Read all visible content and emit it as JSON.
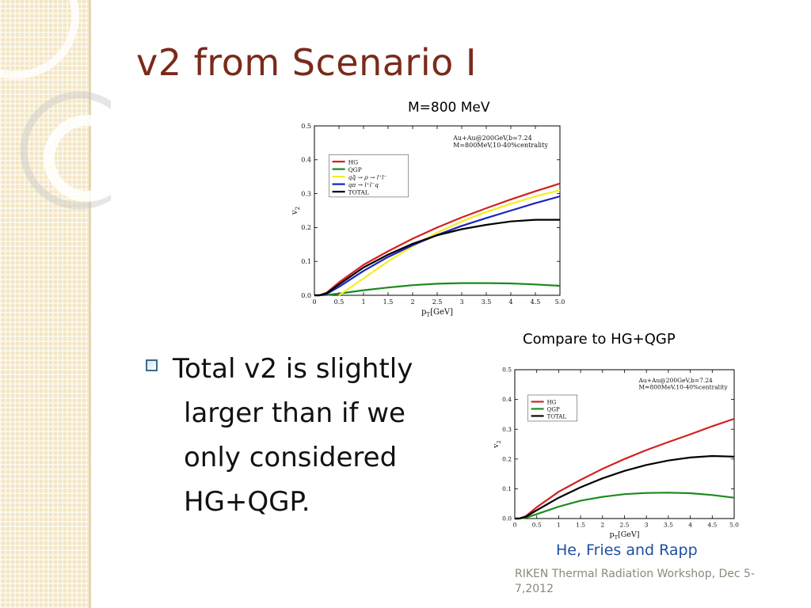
{
  "slide": {
    "title": "v2 from Scenario I",
    "caption_top": "M=800 MeV",
    "caption_bottom": "Compare to HG+QGP",
    "bullet_lines": [
      "Total v2 is slightly",
      "larger than if we",
      "only considered",
      "HG+QGP."
    ],
    "credit": "He, Fries and Rapp",
    "footer": "RIKEN Thermal Radiation Workshop, Dec 5-7,2012"
  },
  "colors": {
    "title": "#7a2a1a",
    "credit": "#1f4fa0",
    "HG": "#d42020",
    "QGP": "#1c8a1c",
    "qq": "#f2ef20",
    "qpi": "#1d22c0",
    "TOTAL": "#000000"
  },
  "chart_data": [
    {
      "type": "line",
      "xlabel": "p_T[GeV]",
      "ylabel": "v_2",
      "xlim": [
        0,
        5.0
      ],
      "ylim": [
        0,
        0.5
      ],
      "xticks": [
        0,
        0.5,
        1,
        1.5,
        2,
        2.5,
        3,
        3.5,
        4,
        4.5,
        5.0
      ],
      "xtick_labels": [
        "0",
        "0.5",
        "1",
        "1.5",
        "2",
        "2.5",
        "3",
        "3.5",
        "4",
        "4.5",
        "5.0"
      ],
      "yticks": [
        0,
        0.1,
        0.2,
        0.3,
        0.4,
        0.5
      ],
      "ytick_labels": [
        "0.0",
        "0.1",
        "0.2",
        "0.3",
        "0.4",
        "0.5"
      ],
      "annotation": [
        "Au+Au@200GeV,b=7.24",
        "M=800MeV,10-40%centrality"
      ],
      "legend_position": "top-left",
      "series": [
        {
          "name": "HG",
          "key": "HG",
          "x": [
            0,
            0.1,
            0.25,
            0.5,
            1,
            1.5,
            2,
            2.5,
            3,
            3.5,
            4,
            4.5,
            5
          ],
          "values": [
            0,
            0,
            0.008,
            0.038,
            0.09,
            0.13,
            0.167,
            0.2,
            0.23,
            0.257,
            0.283,
            0.307,
            0.33
          ]
        },
        {
          "name": "QGP",
          "key": "QGP",
          "x": [
            0,
            0.1,
            0.25,
            0.5,
            1,
            1.5,
            2,
            2.5,
            3,
            3.5,
            4,
            4.5,
            5
          ],
          "values": [
            0,
            0,
            0.001,
            0.005,
            0.015,
            0.023,
            0.03,
            0.034,
            0.036,
            0.036,
            0.035,
            0.032,
            0.028
          ]
        },
        {
          "name": "qq̄ → ρ → l⁺l⁻",
          "key": "qq",
          "x": [
            0.5,
            1,
            1.5,
            2,
            2.5,
            3,
            3.5,
            4,
            4.5,
            5
          ],
          "values": [
            0,
            0.05,
            0.1,
            0.145,
            0.185,
            0.218,
            0.246,
            0.27,
            0.292,
            0.31
          ]
        },
        {
          "name": "qπ → l⁺l⁻q",
          "key": "qpi",
          "x": [
            0,
            0.1,
            0.25,
            0.5,
            1,
            1.5,
            2,
            2.5,
            3,
            3.5,
            4,
            4.5,
            5
          ],
          "values": [
            0,
            0,
            0.004,
            0.025,
            0.072,
            0.113,
            0.148,
            0.178,
            0.205,
            0.228,
            0.25,
            0.272,
            0.292
          ]
        },
        {
          "name": "TOTAL",
          "key": "TOTAL",
          "x": [
            0,
            0.1,
            0.25,
            0.5,
            1,
            1.5,
            2,
            2.5,
            3,
            3.5,
            4,
            4.5,
            5
          ],
          "values": [
            0,
            0,
            0.006,
            0.032,
            0.082,
            0.12,
            0.152,
            0.177,
            0.195,
            0.208,
            0.218,
            0.223,
            0.223
          ]
        }
      ]
    },
    {
      "type": "line",
      "xlabel": "p_T[GeV]",
      "ylabel": "v_2",
      "xlim": [
        0,
        5.0
      ],
      "ylim": [
        0,
        0.5
      ],
      "xticks": [
        0,
        0.5,
        1,
        1.5,
        2,
        2.5,
        3,
        3.5,
        4,
        4.5,
        5.0
      ],
      "xtick_labels": [
        "0",
        "0.5",
        "1",
        "1.5",
        "2",
        "2.5",
        "3",
        "3.5",
        "4",
        "4.5",
        "5.0"
      ],
      "yticks": [
        0,
        0.1,
        0.2,
        0.3,
        0.4,
        0.5
      ],
      "ytick_labels": [
        "0.0",
        "0.1",
        "0.2",
        "0.3",
        "0.4",
        "0.5"
      ],
      "annotation": [
        "Au+Au@200GeV,b=7.24",
        "M=800MeV,10-40%centrality"
      ],
      "legend_position": "top-left",
      "series": [
        {
          "name": "HG",
          "key": "HG",
          "x": [
            0,
            0.1,
            0.25,
            0.5,
            1,
            1.5,
            2,
            2.5,
            3,
            3.5,
            4,
            4.5,
            5
          ],
          "values": [
            0,
            0,
            0.008,
            0.038,
            0.09,
            0.13,
            0.167,
            0.2,
            0.23,
            0.257,
            0.283,
            0.31,
            0.335
          ]
        },
        {
          "name": "QGP",
          "key": "QGP",
          "x": [
            0,
            0.1,
            0.25,
            0.5,
            1,
            1.5,
            2,
            2.5,
            3,
            3.5,
            4,
            4.5,
            5
          ],
          "values": [
            0,
            0,
            0.003,
            0.015,
            0.04,
            0.06,
            0.073,
            0.082,
            0.086,
            0.087,
            0.085,
            0.079,
            0.07
          ]
        },
        {
          "name": "TOTAL",
          "key": "TOTAL",
          "x": [
            0,
            0.1,
            0.25,
            0.5,
            1,
            1.5,
            2,
            2.5,
            3,
            3.5,
            4,
            4.5,
            5
          ],
          "values": [
            0,
            0,
            0.006,
            0.028,
            0.07,
            0.105,
            0.135,
            0.16,
            0.18,
            0.195,
            0.205,
            0.21,
            0.208
          ]
        }
      ]
    }
  ]
}
